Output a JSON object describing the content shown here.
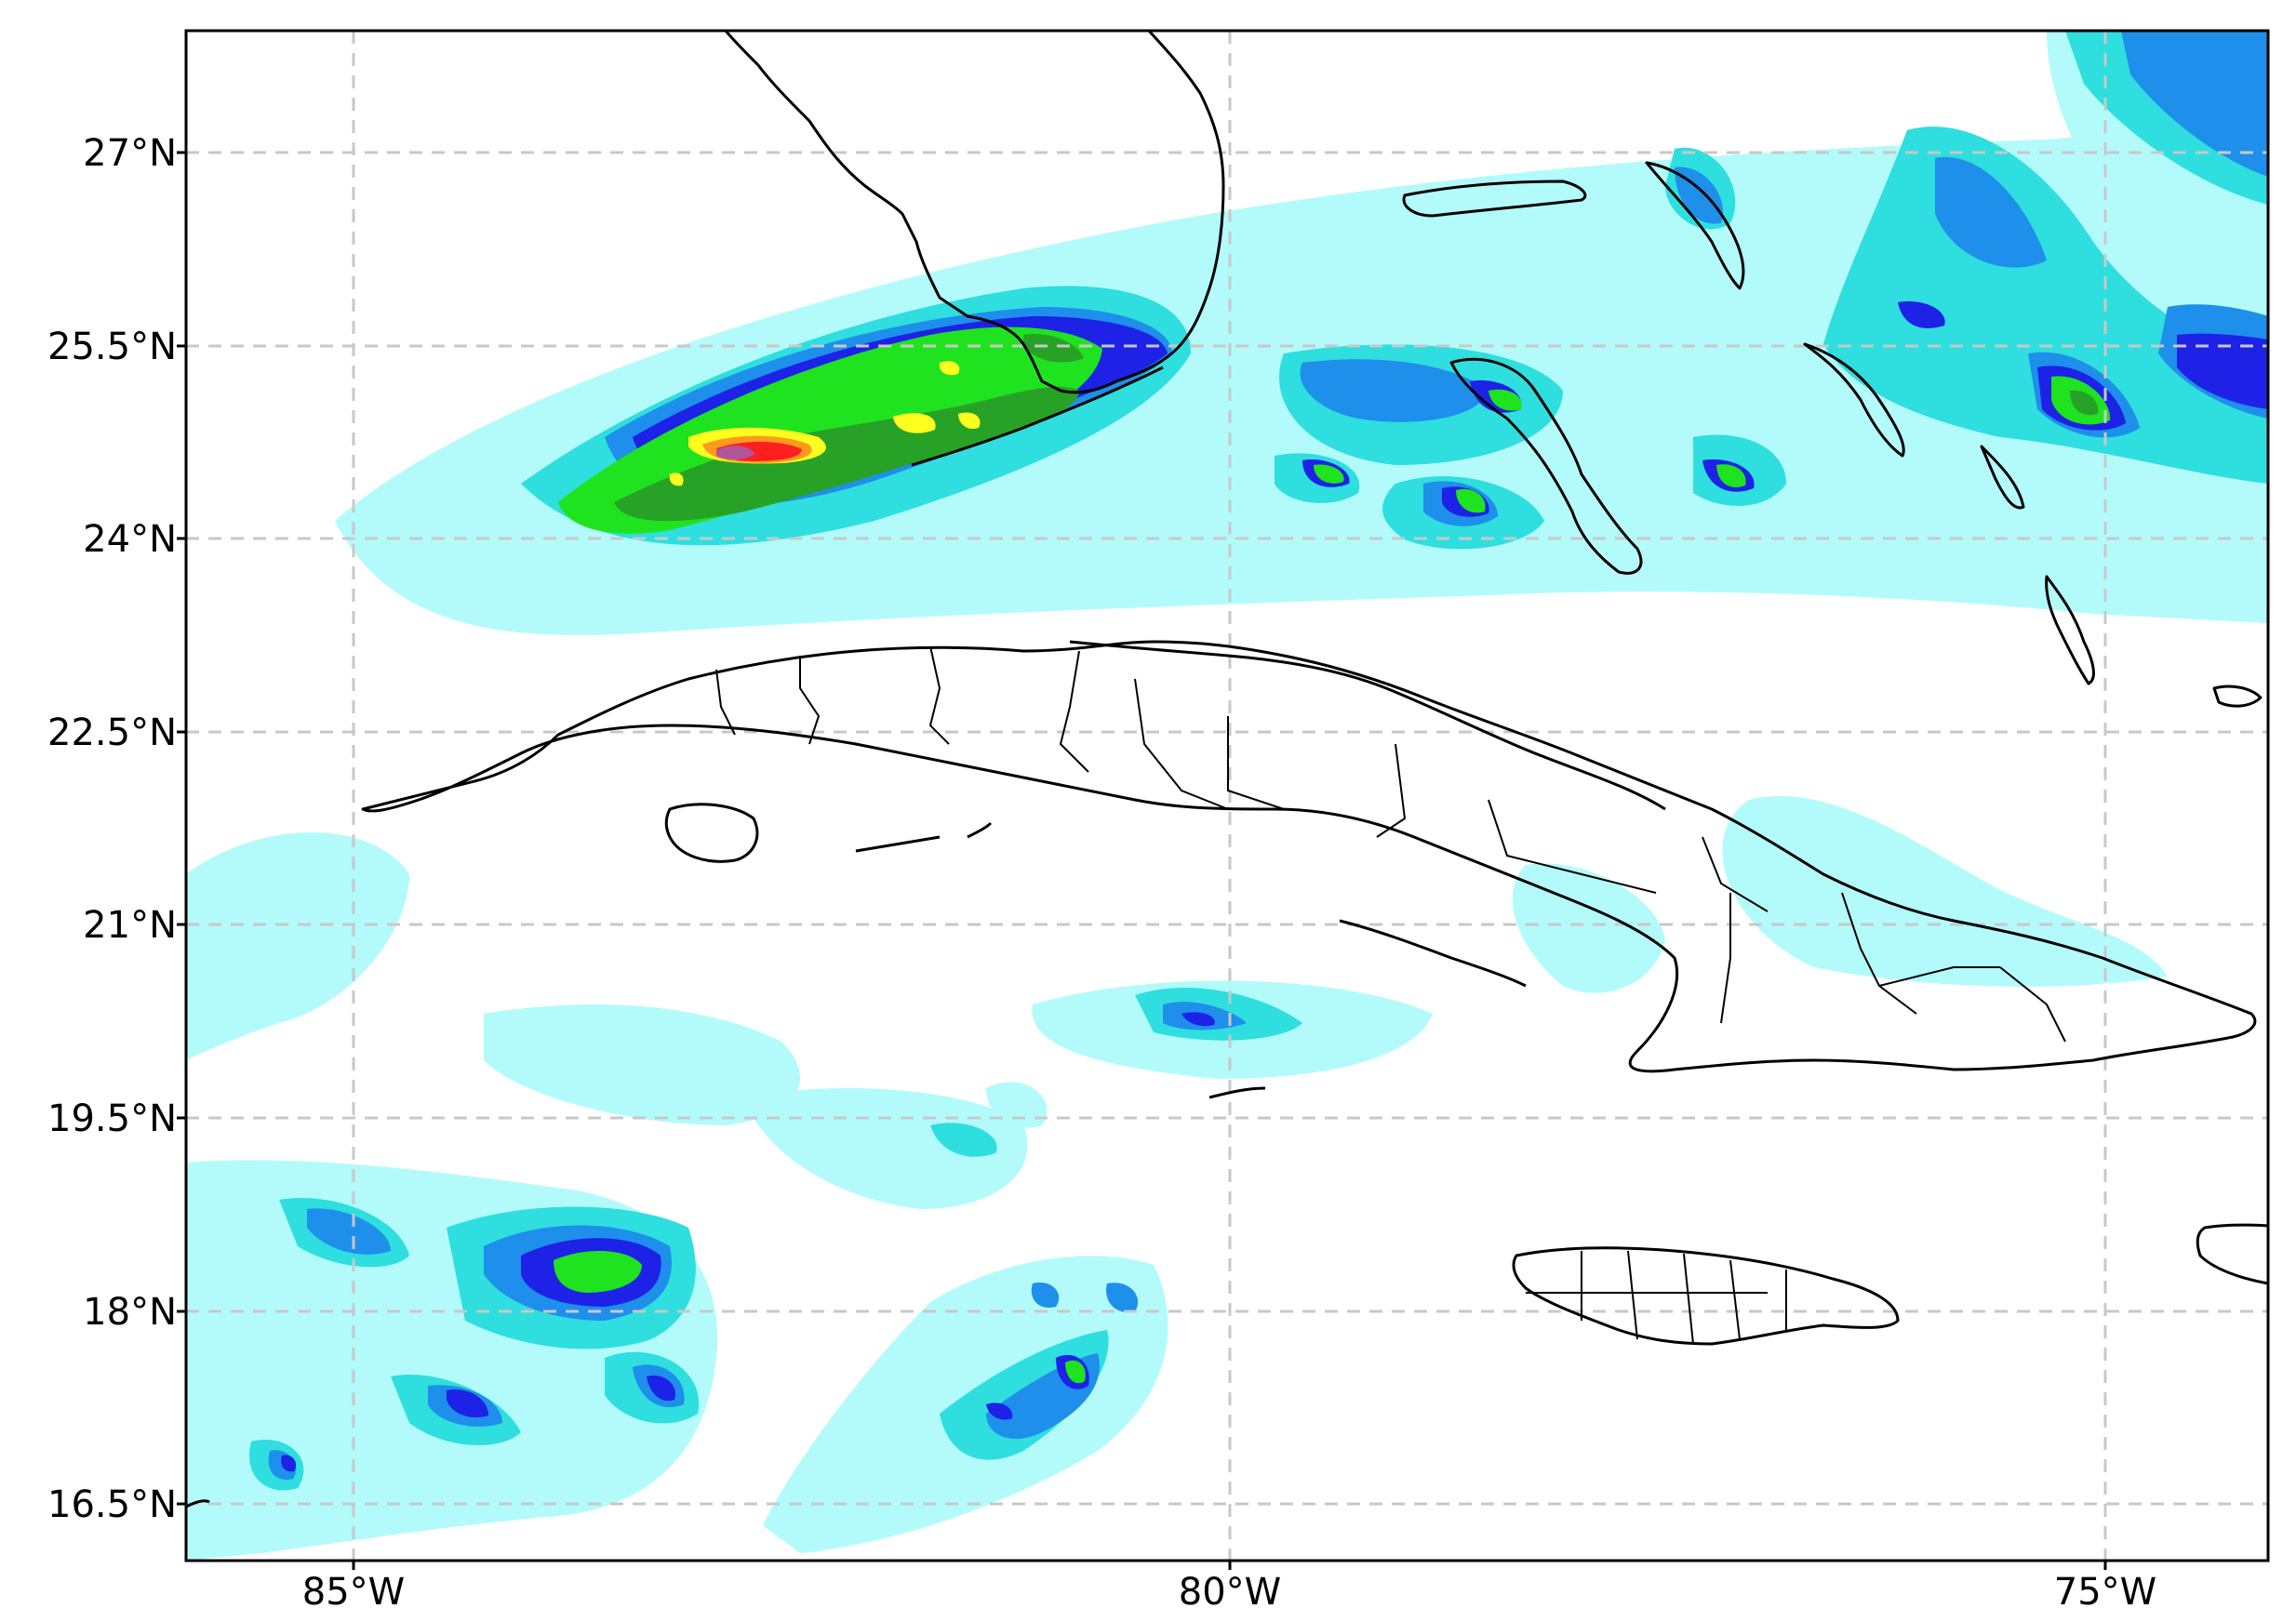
{
  "map": {
    "lat_ticks": [
      "27°N",
      "25.5°N",
      "24°N",
      "22.5°N",
      "21°N",
      "19.5°N",
      "18°N",
      "16.5°N"
    ],
    "lon_ticks": [
      "85°W",
      "80°W",
      "75°W"
    ],
    "colors": {
      "level1": "#b3fbfb",
      "level2": "#2fdede",
      "level3": "#1e8fea",
      "level4": "#1d22e6",
      "level5": "#1fe31f",
      "level6": "#27a227",
      "level7": "#ffff1f",
      "level8": "#ff9a1e",
      "level9": "#ff1f1f",
      "level10": "#b1549c"
    }
  }
}
